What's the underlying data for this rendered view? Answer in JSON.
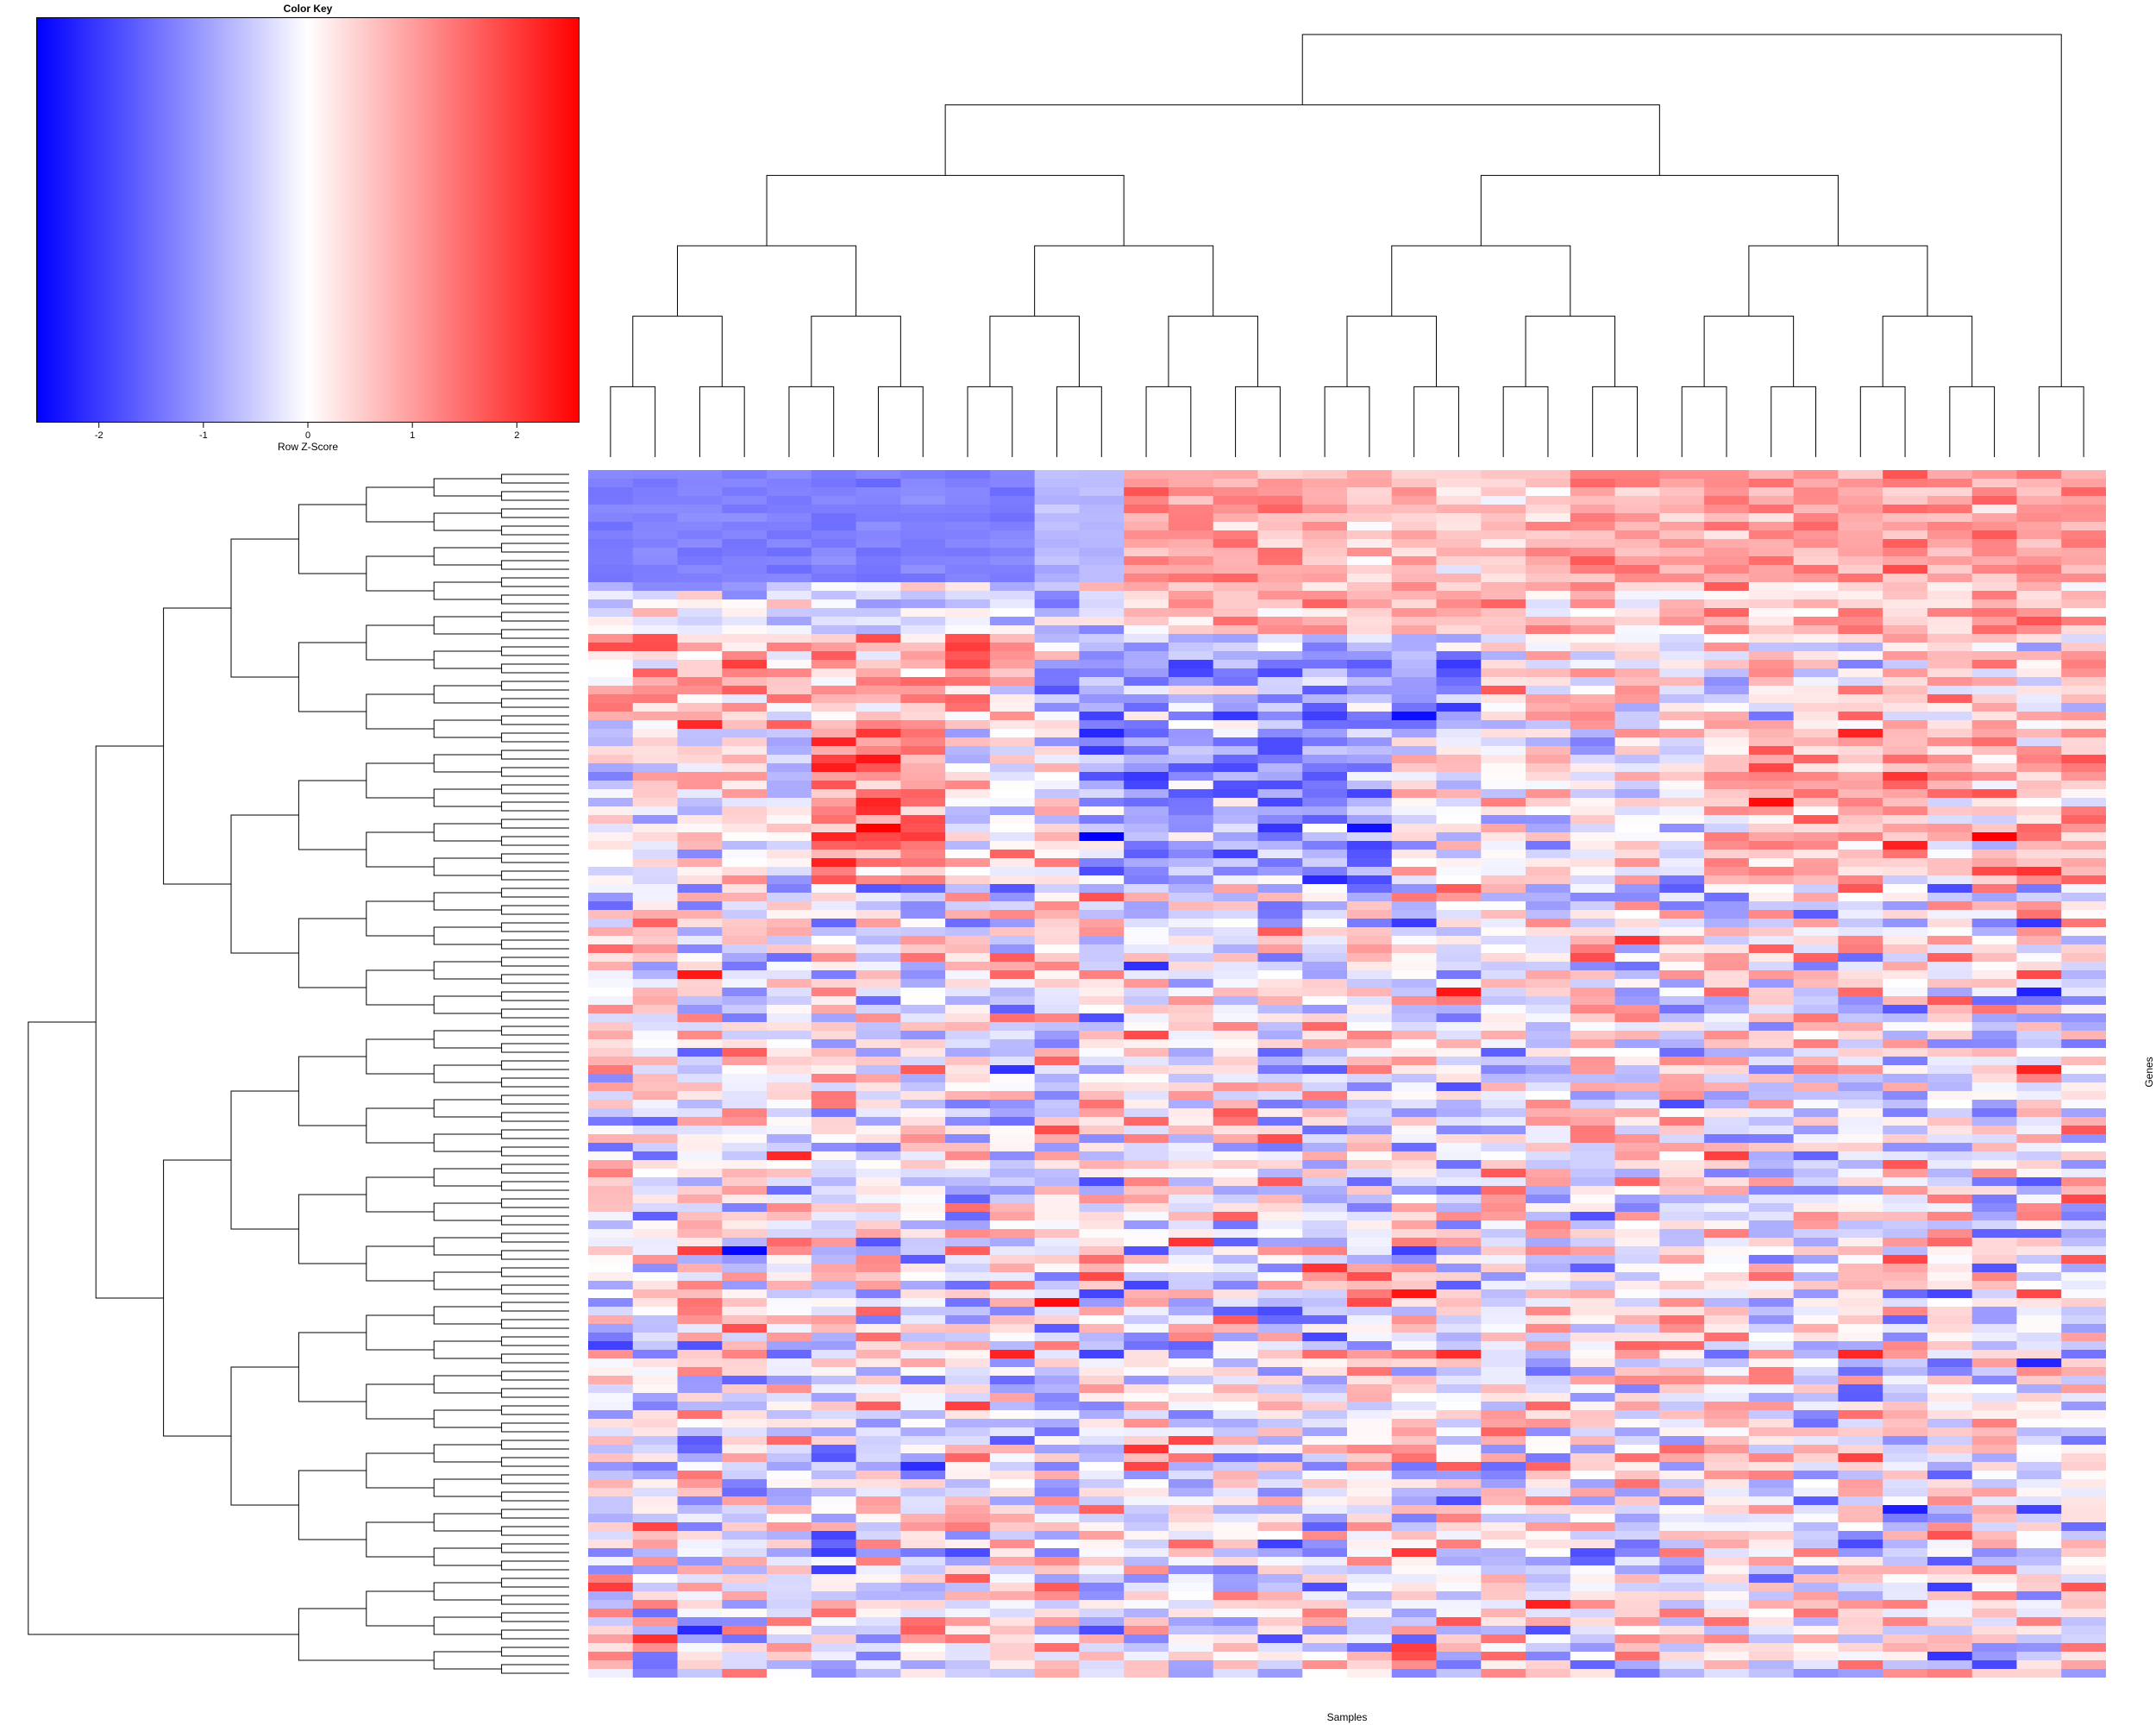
{
  "chart_data": {
    "type": "heatmap",
    "xlabel": "Samples",
    "ylabel": "Genes",
    "n_columns": 34,
    "n_rows": 140,
    "color_key": {
      "title": "Color Key",
      "label": "Row Z-Score",
      "range": [
        -2.6,
        2.6
      ],
      "ticks": [
        -2,
        -1,
        0,
        1,
        2
      ],
      "low_color": "#0000ff",
      "mid_color": "#ffffff",
      "high_color": "#ff0000"
    },
    "column_groups": [
      {
        "columns": [
          0,
          11
        ],
        "top_block_mean": -1.3
      },
      {
        "columns": [
          12,
          33
        ],
        "top_block_mean": 1.0
      }
    ],
    "row_blocks": [
      {
        "rows": [
          0,
          12
        ],
        "pattern": "blue-left-red-right"
      },
      {
        "rows": [
          13,
          18
        ],
        "pattern": "mixed-right-red"
      },
      {
        "rows": [
          19,
          29
        ],
        "pattern": "red-left-blue-middle"
      },
      {
        "rows": [
          30,
          47
        ],
        "pattern": "red-center-left-blue-middle"
      },
      {
        "rows": [
          48,
          139
        ],
        "pattern": "mixed"
      }
    ],
    "row_dendrogram": "present",
    "column_dendrogram": "present"
  }
}
